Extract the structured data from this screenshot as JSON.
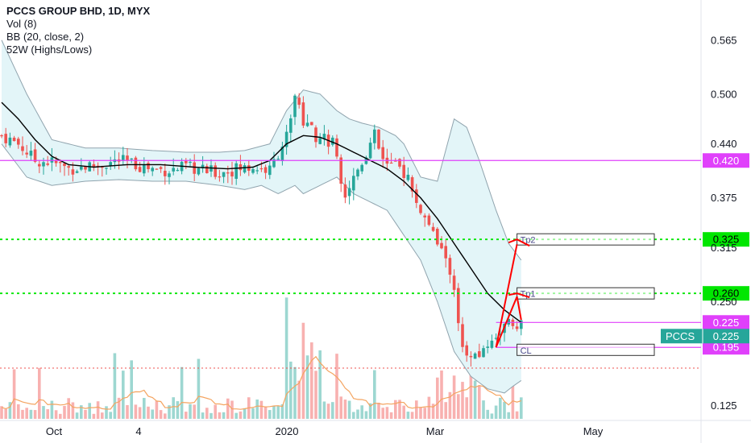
{
  "legend": {
    "title": "PCCS GROUP BHD, 1D, MYX",
    "vol": "Vol (8)",
    "bb": "BB (20, close, 2)",
    "hl": "52W (Highs/Lows)"
  },
  "colors": {
    "up": "#26a69a",
    "down": "#ef5350",
    "bb_fill": "#e3f5f8",
    "bb_band": "#90a4ae",
    "bb_basis": "#000000",
    "magenta": "#e040fb",
    "green": "#00e600",
    "red_arrow": "#ff0000",
    "vol_ma": "#f4a460",
    "ticker": "#26a69a"
  },
  "chart_data": {
    "type": "candlestick",
    "y_axis": {
      "ticks": [
        "0.565",
        "0.500",
        "0.440",
        "0.375",
        "0.315",
        "0.250",
        "0.125"
      ],
      "range": [
        0.105,
        0.61
      ]
    },
    "x_axis": {
      "ticks": [
        "Oct",
        "4",
        "2020",
        "Mar",
        "May"
      ]
    },
    "price_levels": [
      {
        "label": "0.420",
        "value": 0.42,
        "style": "magenta-solid"
      },
      {
        "label": "0.325",
        "value": 0.325,
        "style": "green-dotted"
      },
      {
        "label": "0.260",
        "value": 0.26,
        "style": "green-dotted"
      },
      {
        "label": "0.225",
        "value": 0.225,
        "style": "magenta-solid"
      },
      {
        "label": "0.195",
        "value": 0.195,
        "style": "magenta-solid"
      }
    ],
    "low_line_value": 0.17,
    "current": {
      "ticker": "PCCS",
      "price": "0.225",
      "value": 0.225
    },
    "annotations": [
      {
        "label": "Tp2",
        "value": 0.325
      },
      {
        "label": "Tp1",
        "value": 0.26
      },
      {
        "label": "CL",
        "value": 0.192
      }
    ],
    "close_path": [
      [
        0,
        0.45
      ],
      [
        4,
        0.44
      ],
      [
        8,
        0.42
      ],
      [
        12,
        0.418
      ],
      [
        16,
        0.41
      ],
      [
        19,
        0.412
      ],
      [
        24,
        0.415
      ],
      [
        28,
        0.42
      ],
      [
        32,
        0.415
      ],
      [
        36,
        0.41
      ],
      [
        40,
        0.408
      ],
      [
        44,
        0.412
      ],
      [
        48,
        0.408
      ],
      [
        52,
        0.405
      ],
      [
        56,
        0.41
      ],
      [
        60,
        0.412
      ],
      [
        64,
        0.408
      ],
      [
        68,
        0.45
      ],
      [
        70,
        0.5
      ],
      [
        72,
        0.47
      ],
      [
        75,
        0.45
      ],
      [
        79,
        0.44
      ],
      [
        80,
        0.42
      ],
      [
        82,
        0.38
      ],
      [
        83,
        0.39
      ],
      [
        86,
        0.42
      ],
      [
        89,
        0.45
      ],
      [
        92,
        0.415
      ],
      [
        95,
        0.41
      ],
      [
        97,
        0.4
      ],
      [
        98,
        0.38
      ],
      [
        100,
        0.36
      ],
      [
        102,
        0.34
      ],
      [
        104,
        0.32
      ],
      [
        106,
        0.3
      ],
      [
        108,
        0.27
      ],
      [
        109,
        0.23
      ],
      [
        110,
        0.19
      ],
      [
        113,
        0.18
      ],
      [
        116,
        0.2
      ],
      [
        118,
        0.21
      ],
      [
        120,
        0.22
      ],
      [
        122,
        0.225
      ],
      [
        124,
        0.225
      ]
    ],
    "bb_upper": [
      [
        0,
        0.565
      ],
      [
        6,
        0.5
      ],
      [
        12,
        0.445
      ],
      [
        20,
        0.435
      ],
      [
        28,
        0.435
      ],
      [
        36,
        0.432
      ],
      [
        44,
        0.43
      ],
      [
        52,
        0.43
      ],
      [
        58,
        0.432
      ],
      [
        64,
        0.44
      ],
      [
        68,
        0.48
      ],
      [
        72,
        0.505
      ],
      [
        76,
        0.5
      ],
      [
        80,
        0.48
      ],
      [
        83,
        0.47
      ],
      [
        86,
        0.465
      ],
      [
        90,
        0.46
      ],
      [
        92,
        0.455
      ],
      [
        94,
        0.45
      ],
      [
        96,
        0.44
      ],
      [
        98,
        0.42
      ],
      [
        100,
        0.4
      ],
      [
        104,
        0.395
      ],
      [
        108,
        0.47
      ],
      [
        111,
        0.46
      ],
      [
        114,
        0.42
      ],
      [
        118,
        0.36
      ],
      [
        121,
        0.32
      ],
      [
        124,
        0.3
      ]
    ],
    "bb_basis": [
      [
        0,
        0.49
      ],
      [
        4,
        0.47
      ],
      [
        8,
        0.445
      ],
      [
        12,
        0.425
      ],
      [
        16,
        0.415
      ],
      [
        22,
        0.412
      ],
      [
        30,
        0.415
      ],
      [
        38,
        0.415
      ],
      [
        46,
        0.412
      ],
      [
        54,
        0.41
      ],
      [
        60,
        0.412
      ],
      [
        64,
        0.42
      ],
      [
        68,
        0.44
      ],
      [
        72,
        0.45
      ],
      [
        76,
        0.448
      ],
      [
        80,
        0.44
      ],
      [
        84,
        0.43
      ],
      [
        88,
        0.42
      ],
      [
        92,
        0.41
      ],
      [
        96,
        0.395
      ],
      [
        100,
        0.375
      ],
      [
        104,
        0.35
      ],
      [
        108,
        0.32
      ],
      [
        112,
        0.29
      ],
      [
        116,
        0.26
      ],
      [
        120,
        0.24
      ],
      [
        124,
        0.225
      ]
    ],
    "bb_lower": [
      [
        0,
        0.44
      ],
      [
        6,
        0.4
      ],
      [
        12,
        0.39
      ],
      [
        20,
        0.395
      ],
      [
        28,
        0.397
      ],
      [
        36,
        0.395
      ],
      [
        44,
        0.395
      ],
      [
        52,
        0.39
      ],
      [
        58,
        0.385
      ],
      [
        62,
        0.39
      ],
      [
        66,
        0.38
      ],
      [
        70,
        0.39
      ],
      [
        72,
        0.38
      ],
      [
        76,
        0.39
      ],
      [
        80,
        0.4
      ],
      [
        84,
        0.38
      ],
      [
        88,
        0.37
      ],
      [
        92,
        0.36
      ],
      [
        96,
        0.33
      ],
      [
        100,
        0.3
      ],
      [
        104,
        0.25
      ],
      [
        108,
        0.19
      ],
      [
        112,
        0.16
      ],
      [
        116,
        0.145
      ],
      [
        120,
        0.14
      ],
      [
        122,
        0.148
      ],
      [
        124,
        0.155
      ]
    ]
  }
}
